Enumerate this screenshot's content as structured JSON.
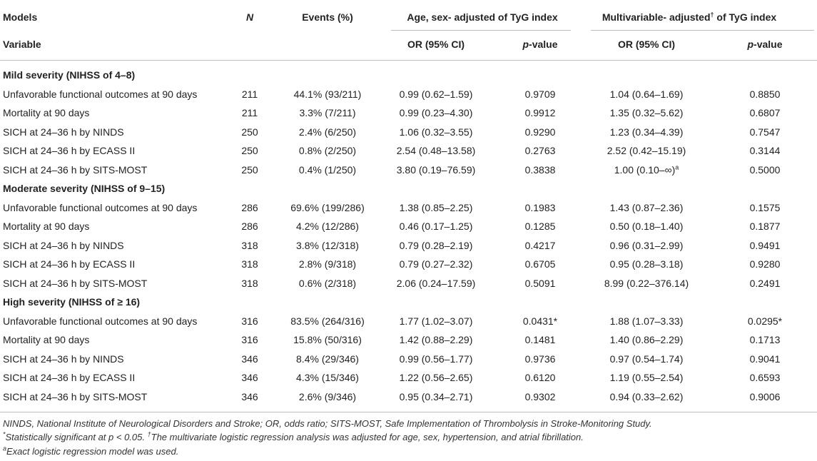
{
  "header": {
    "row1": {
      "models": "Models",
      "n": "N",
      "events": "Events (%)",
      "age_sex_group": "Age, sex- adjusted of TyG index",
      "multi_group_pre": "Multivariable- adjusted",
      "multi_group_sup": "†",
      "multi_group_post": " of TyG index"
    },
    "row2": {
      "variable": "Variable",
      "or1": "OR (95% CI)",
      "p1_italic": "p",
      "p1_rest": "-value",
      "or2": "OR (95% CI)",
      "p2_italic": "p",
      "p2_rest": "-value"
    }
  },
  "sections": [
    {
      "title": "Mild severity (NIHSS of 4–8)",
      "rows": [
        {
          "variable": "Unfavorable functional outcomes at 90 days",
          "n": "211",
          "events": "44.1% (93/211)",
          "or1": "0.99 (0.62–1.59)",
          "p1": "0.9709",
          "or2": "1.04 (0.64–1.69)",
          "p2": "0.8850"
        },
        {
          "variable": "Mortality at 90 days",
          "n": "211",
          "events": "3.3% (7/211)",
          "or1": "0.99 (0.23–4.30)",
          "p1": "0.9912",
          "or2": "1.35 (0.32–5.62)",
          "p2": "0.6807"
        },
        {
          "variable": "SICH at 24–36 h by NINDS",
          "n": "250",
          "events": "2.4% (6/250)",
          "or1": "1.06 (0.32–3.55)",
          "p1": "0.9290",
          "or2": "1.23 (0.34–4.39)",
          "p2": "0.7547"
        },
        {
          "variable": "SICH at 24–36 h by ECASS II",
          "n": "250",
          "events": "0.8% (2/250)",
          "or1": "2.54 (0.48–13.58)",
          "p1": "0.2763",
          "or2": "2.52 (0.42–15.19)",
          "p2": "0.3144"
        },
        {
          "variable": "SICH at 24–36 h by SITS-MOST",
          "n": "250",
          "events": "0.4% (1/250)",
          "or1": "3.80 (0.19–76.59)",
          "p1": "0.3838",
          "or2": "1.00 (0.10–∞)",
          "or2_sup": "a",
          "p2": "0.5000"
        }
      ]
    },
    {
      "title": "Moderate severity (NIHSS of 9–15)",
      "rows": [
        {
          "variable": "Unfavorable functional outcomes at 90 days",
          "n": "286",
          "events": "69.6% (199/286)",
          "or1": "1.38 (0.85–2.25)",
          "p1": "0.1983",
          "or2": "1.43 (0.87–2.36)",
          "p2": "0.1575"
        },
        {
          "variable": "Mortality at 90 days",
          "n": "286",
          "events": "4.2% (12/286)",
          "or1": "0.46 (0.17–1.25)",
          "p1": "0.1285",
          "or2": "0.50 (0.18–1.40)",
          "p2": "0.1877"
        },
        {
          "variable": "SICH at 24–36 h by NINDS",
          "n": "318",
          "events": "3.8% (12/318)",
          "or1": "0.79 (0.28–2.19)",
          "p1": "0.4217",
          "or2": "0.96 (0.31–2.99)",
          "p2": "0.9491"
        },
        {
          "variable": "SICH at 24–36 h by ECASS II",
          "n": "318",
          "events": "2.8% (9/318)",
          "or1": "0.79 (0.27–2.32)",
          "p1": "0.6705",
          "or2": "0.95 (0.28–3.18)",
          "p2": "0.9280"
        },
        {
          "variable": "SICH at 24–36 h by SITS-MOST",
          "n": "318",
          "events": "0.6% (2/318)",
          "or1": "2.06 (0.24–17.59)",
          "p1": "0.5091",
          "or2": "8.99 (0.22–376.14)",
          "p2": "0.2491"
        }
      ]
    },
    {
      "title": "High severity (NIHSS of ≥ 16)",
      "rows": [
        {
          "variable": "Unfavorable functional outcomes at 90 days",
          "n": "316",
          "events": "83.5% (264/316)",
          "or1": "1.77 (1.02–3.07)",
          "p1": "0.0431*",
          "or2": "1.88 (1.07–3.33)",
          "p2": "0.0295*"
        },
        {
          "variable": "Mortality at 90 days",
          "n": "316",
          "events": "15.8% (50/316)",
          "or1": "1.42 (0.88–2.29)",
          "p1": "0.1481",
          "or2": "1.40 (0.86–2.29)",
          "p2": "0.1713"
        },
        {
          "variable": "SICH at 24–36 h by NINDS",
          "n": "346",
          "events": "8.4% (29/346)",
          "or1": "0.99 (0.56–1.77)",
          "p1": "0.9736",
          "or2": "0.97 (0.54–1.74)",
          "p2": "0.9041"
        },
        {
          "variable": "SICH at 24–36 h by ECASS II",
          "n": "346",
          "events": "4.3% (15/346)",
          "or1": "1.22 (0.56–2.65)",
          "p1": "0.6120",
          "or2": "1.19 (0.55–2.54)",
          "p2": "0.6593"
        },
        {
          "variable": "SICH at 24–36 h by SITS-MOST",
          "n": "346",
          "events": "2.6% (9/346)",
          "or1": "0.95 (0.34–2.71)",
          "p1": "0.9302",
          "or2": "0.94 (0.33–2.62)",
          "p2": "0.9006"
        }
      ]
    }
  ],
  "footnotes": {
    "abbrev": "NINDS, National Institute of Neurological Disorders and Stroke; OR, odds ratio; SITS-MOST, Safe Implementation of Thrombolysis in Stroke-Monitoring Study.",
    "sig_mark": "*",
    "sig_text": "Statistically significant at p < 0.05.",
    "dagger_mark": "†",
    "dagger_text": "The multivariate logistic regression analysis was adjusted for age, sex, hypertension, and atrial fibrillation.",
    "exact_mark": "a",
    "exact_text": "Exact logistic regression model was used."
  }
}
